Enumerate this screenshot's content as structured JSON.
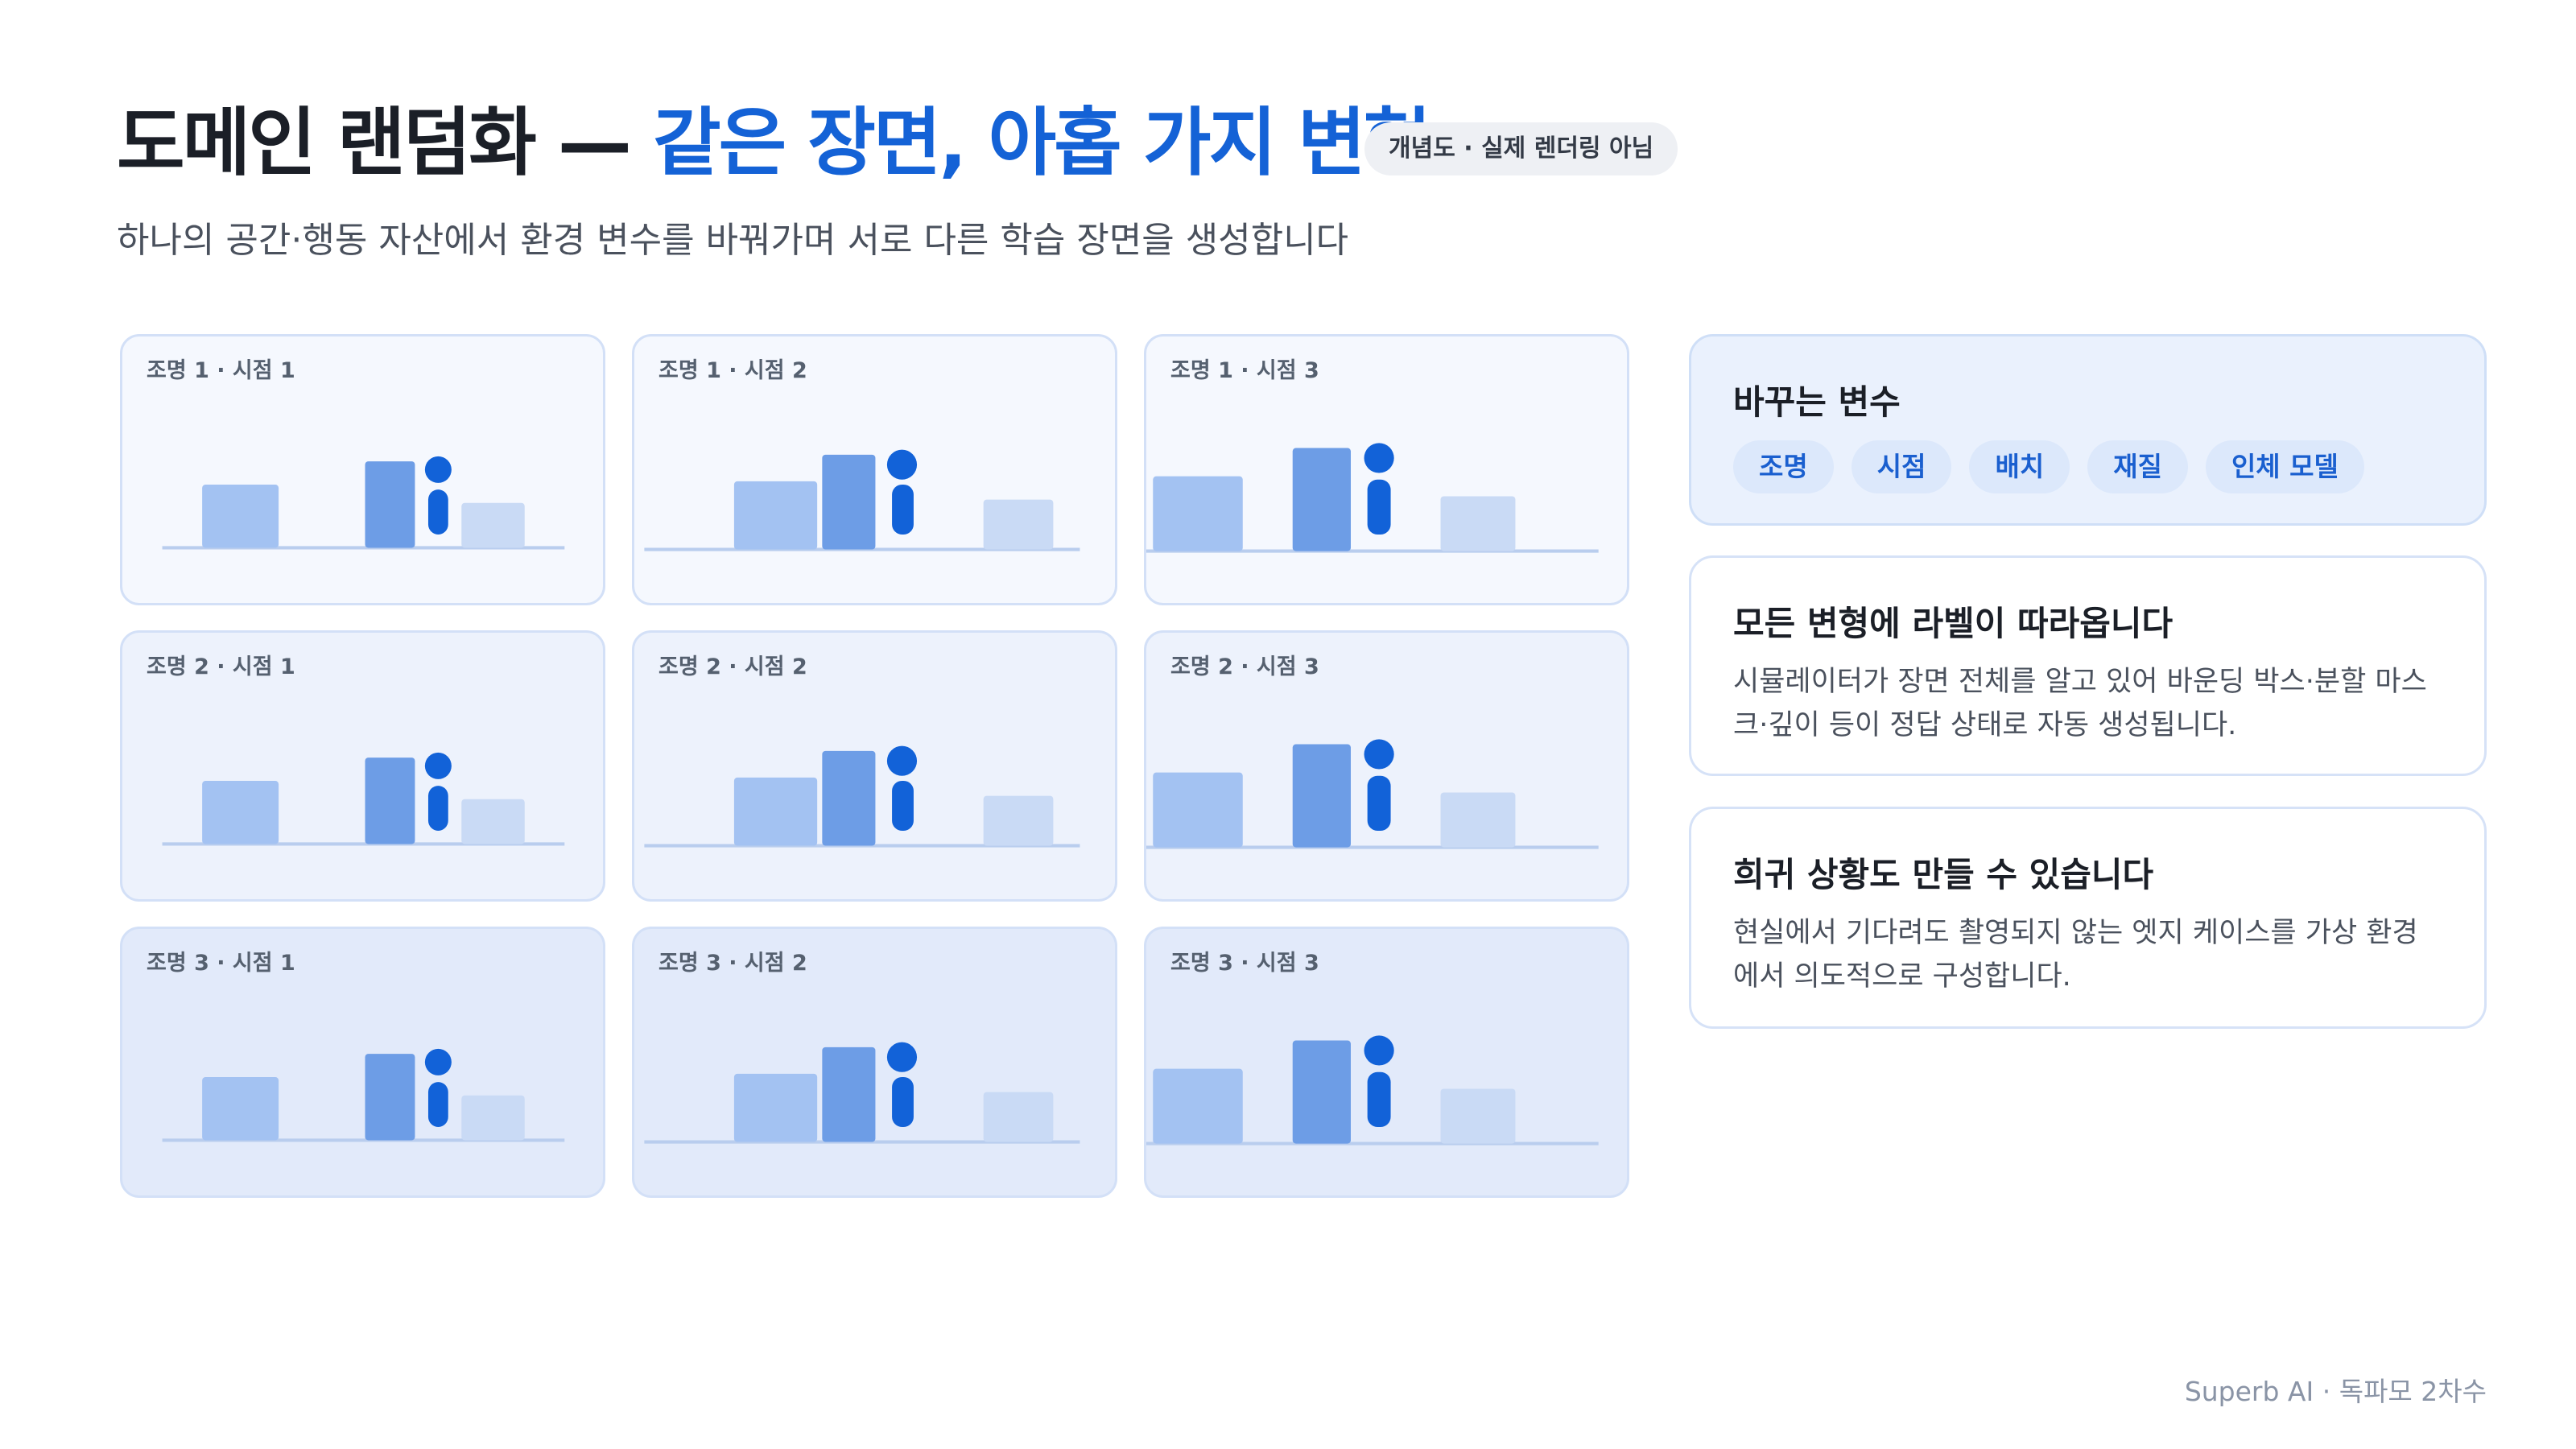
{
  "header": {
    "title_lead": "도메인 랜덤화 —",
    "title_accent": "같은 장면, 아홉 가지 변형",
    "badge": "개념도 · 실제 렌더링 아님",
    "subtitle": "하나의 공간·행동 자산에서 환경 변수를 바꿔가며 서로 다른 학습 장면을 생성합니다"
  },
  "grid": {
    "cells": [
      "조명 1 · 시점 1",
      "조명 1 · 시점 2",
      "조명 1 · 시점 3",
      "조명 2 · 시점 1",
      "조명 2 · 시점 2",
      "조명 2 · 시점 3",
      "조명 3 · 시점 1",
      "조명 3 · 시점 2",
      "조명 3 · 시점 3"
    ]
  },
  "variables": {
    "title": "바꾸는 변수",
    "chips": [
      "조명",
      "시점",
      "배치",
      "재질",
      "인체 모델"
    ]
  },
  "cards": [
    {
      "title": "모든 변형에 라벨이 따라옵니다",
      "body": "시뮬레이터가 장면 전체를 알고 있어 바운딩 박스·분할 마스크·깊이 등이 정답 상태로 자동 생성됩니다."
    },
    {
      "title": "희귀 상황도 만들 수 있습니다",
      "body": "현실에서 기다려도 촬영되지 않는 엣지 케이스를 가상 환경에서 의도적으로 구성합니다."
    }
  ],
  "footer": "Superb AI · 독파모 2차수"
}
